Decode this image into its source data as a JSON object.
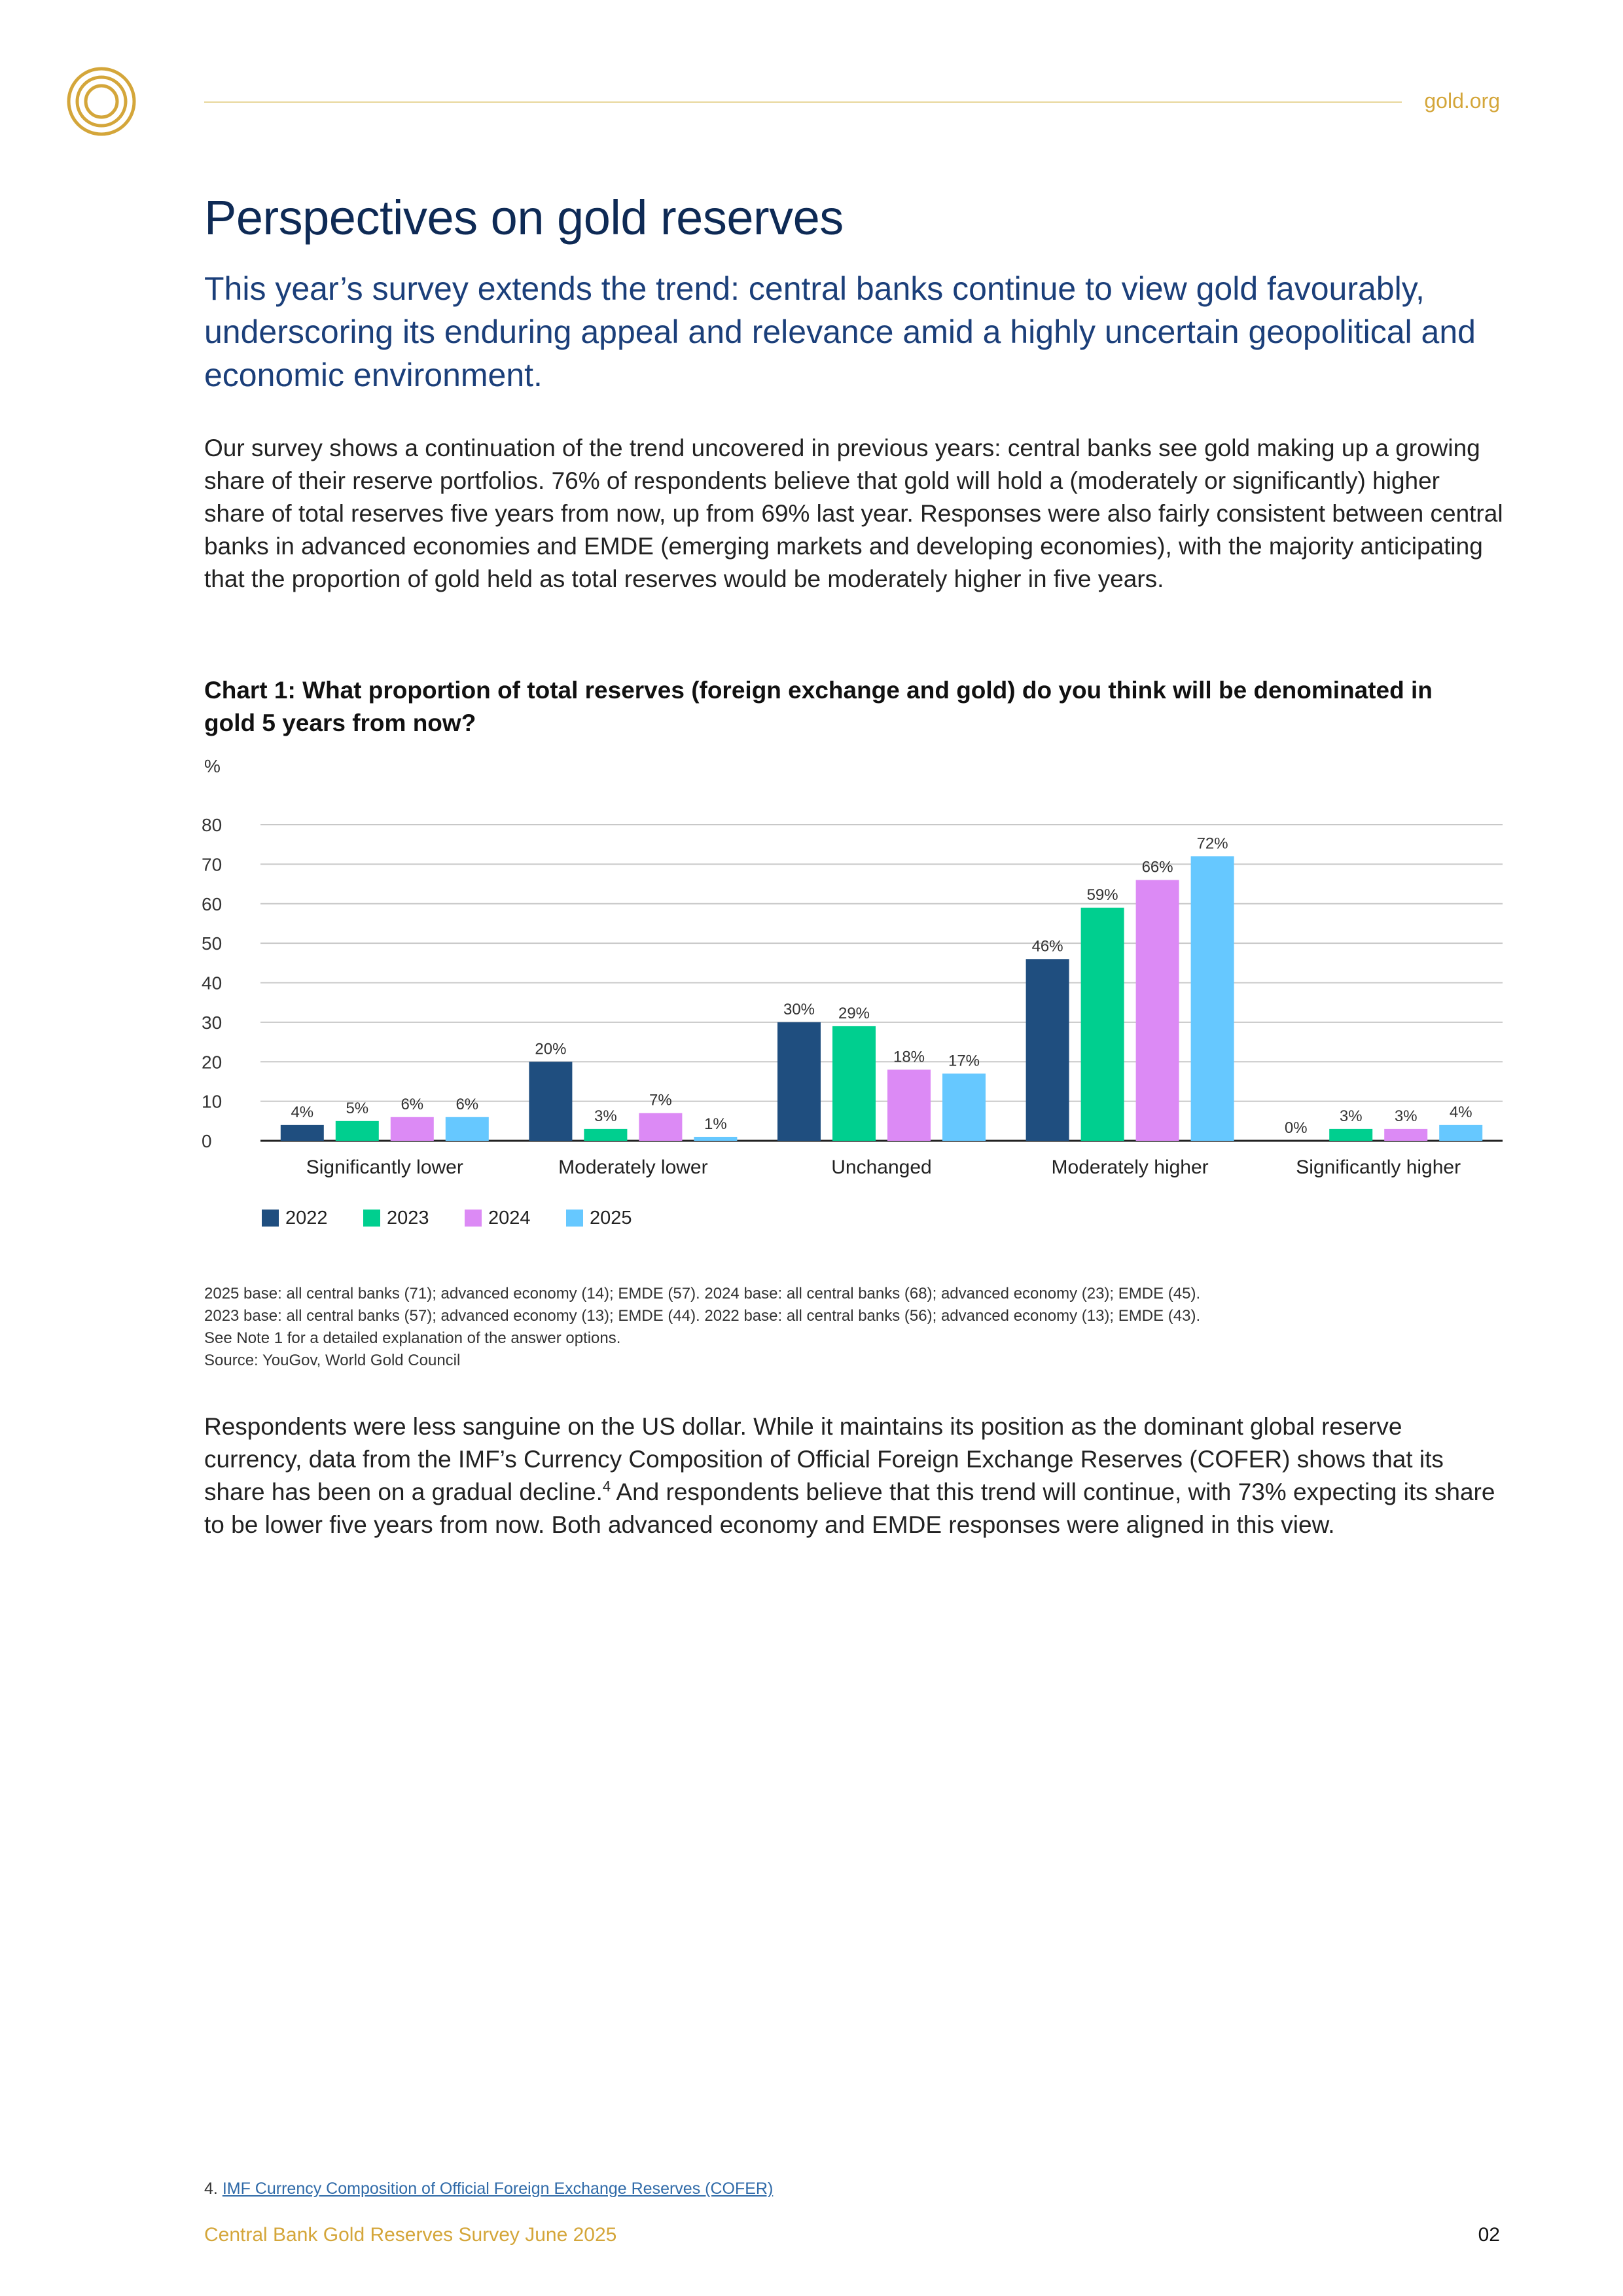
{
  "header": {
    "site": "gold.org"
  },
  "title": "Perspectives on gold reserves",
  "subtitle": "This year’s survey extends the trend: central banks continue to view gold favourably, underscoring its enduring appeal and relevance amid a highly uncertain geopolitical and economic environment.",
  "paragraph1": "Our survey shows a continuation of the trend uncovered in previous years: central banks see gold making up a growing share of their reserve portfolios. 76% of respondents believe that gold will hold a (moderately or significantly) higher share of total reserves five years from now, up from 69% last year. Responses were also fairly consistent between central banks in advanced economies and EMDE (emerging markets and developing economies), with the majority anticipating that the proportion of gold held as total reserves would be moderately higher in five years.",
  "chart_title": "Chart 1: What proportion of total reserves (foreign exchange and gold) do you think will be denominated in gold 5 years from now?",
  "chart_data": {
    "type": "bar",
    "title": "Chart 1: What proportion of total reserves (foreign exchange and gold) do you think will be denominated in gold 5 years from now?",
    "ylabel": "%",
    "xlabel": "",
    "ylim": [
      0,
      80
    ],
    "yticks": [
      0,
      10,
      20,
      30,
      40,
      50,
      60,
      70,
      80
    ],
    "grid": true,
    "legend": "bottom-left",
    "categories": [
      "Significantly lower",
      "Moderately lower",
      "Unchanged",
      "Moderately higher",
      "Significantly higher"
    ],
    "series": [
      {
        "name": "2022",
        "color": "#1f4e7f",
        "values": [
          4,
          20,
          30,
          46,
          0
        ]
      },
      {
        "name": "2023",
        "color": "#00cf8f",
        "values": [
          5,
          3,
          29,
          59,
          3
        ]
      },
      {
        "name": "2024",
        "color": "#dc8af5",
        "values": [
          6,
          7,
          18,
          66,
          3
        ]
      },
      {
        "name": "2025",
        "color": "#66c8ff",
        "values": [
          6,
          1,
          17,
          72,
          4
        ]
      }
    ]
  },
  "chart_notes": [
    "2025 base: all central banks (71); advanced economy (14); EMDE (57). 2024 base: all central banks (68); advanced economy (23); EMDE (45).",
    "2023 base: all central banks (57); advanced economy (13); EMDE (44). 2022 base: all central banks (56); advanced economy (13); EMDE (43).",
    "See Note 1 for a detailed explanation of the answer options.",
    "Source: YouGov, World Gold Council"
  ],
  "paragraph2_before": "Respondents were less sanguine on the US dollar. While it maintains its position as the dominant global reserve currency, data from the IMF’s Currency Composition of Official Foreign Exchange Reserves (COFER) shows that its share has been on a gradual decline.",
  "paragraph2_sup": "4",
  "paragraph2_after": " And respondents believe that this trend will continue, with 73% expecting its share to be lower five years from now. Both advanced economy and EMDE responses were aligned in this view.",
  "footnote": {
    "number": "4.",
    "link_text": "IMF Currency Composition of Official Foreign Exchange Reserves (COFER)"
  },
  "footer": {
    "publication": "Central Bank Gold Reserves Survey June 2025",
    "page": "02"
  }
}
